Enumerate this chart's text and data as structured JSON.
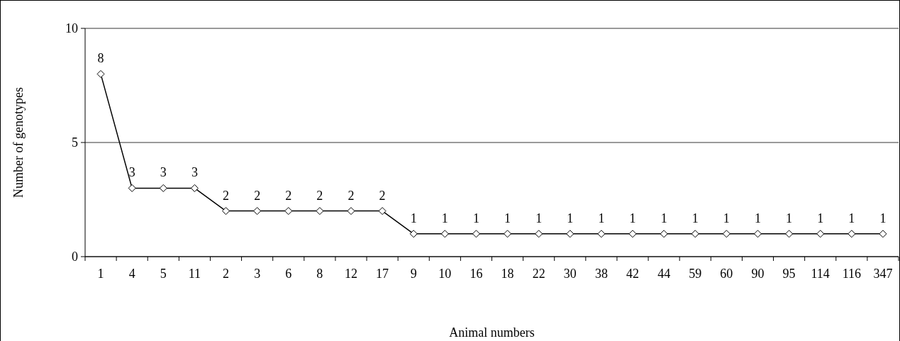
{
  "chart_data": {
    "type": "line",
    "xlabel": "Animal numbers",
    "ylabel": "Number of genotypes",
    "categories": [
      "1",
      "4",
      "5",
      "11",
      "2",
      "3",
      "6",
      "8",
      "12",
      "17",
      "9",
      "10",
      "16",
      "18",
      "22",
      "30",
      "38",
      "42",
      "44",
      "59",
      "60",
      "90",
      "95",
      "114",
      "116",
      "347"
    ],
    "series": [
      {
        "color": "#000000",
        "values": [
          8,
          3,
          3,
          3,
          2,
          2,
          2,
          2,
          2,
          2,
          1,
          1,
          1,
          1,
          1,
          1,
          1,
          1,
          1,
          1,
          1,
          1,
          1,
          1,
          1,
          1
        ]
      }
    ],
    "ylim": [
      0,
      10
    ],
    "yticks": [
      0,
      5,
      10
    ],
    "grid": "y",
    "marker": "diamond",
    "line_style": "solid",
    "data_labels": true
  }
}
